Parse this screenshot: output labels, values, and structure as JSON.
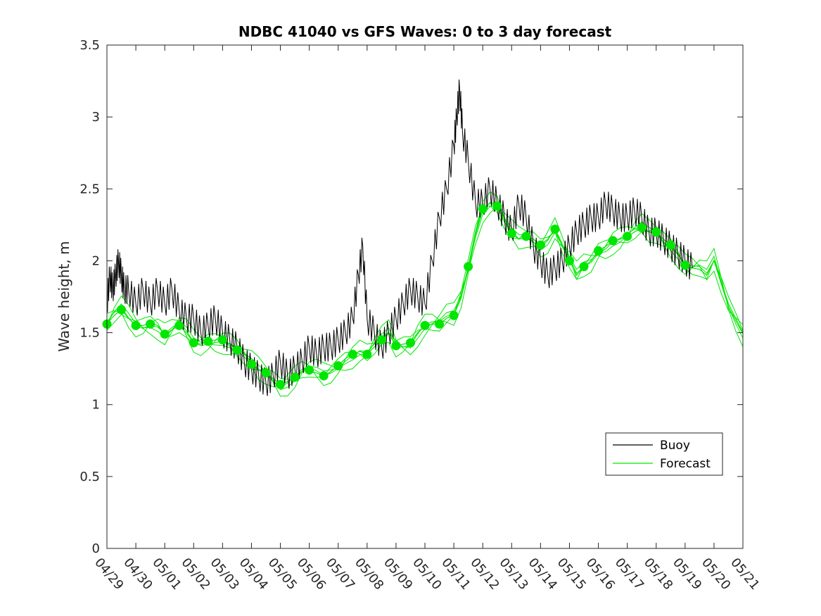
{
  "chart_data": {
    "type": "line",
    "title": "NDBC 41040 vs GFS Waves: 0 to 3 day forecast",
    "xlabel": "",
    "ylabel": "Wave height, m",
    "xlim": [
      0,
      22
    ],
    "ylim": [
      0,
      3.5
    ],
    "x_unit": "days from 04/29",
    "x_tick_labels": [
      "04/29",
      "04/30",
      "05/01",
      "05/02",
      "05/03",
      "05/04",
      "05/05",
      "05/06",
      "05/07",
      "05/08",
      "05/09",
      "05/10",
      "05/11",
      "05/12",
      "05/13",
      "05/14",
      "05/15",
      "05/16",
      "05/17",
      "05/18",
      "05/19",
      "05/20",
      "05/21"
    ],
    "y_ticks": [
      0,
      0.5,
      1,
      1.5,
      2,
      2.5,
      3,
      3.5
    ],
    "y_tick_labels": [
      "0",
      "0.5",
      "1",
      "1.5",
      "2",
      "2.5",
      "3",
      "3.5"
    ],
    "grid": false,
    "legend_position": "bottom-right",
    "colors": {
      "buoy": "#000000",
      "forecast": "#00e600"
    },
    "series": [
      {
        "name": "Buoy",
        "color": "#000000",
        "x": [
          0,
          0.1,
          0.2,
          0.3,
          0.4,
          0.5,
          0.6,
          0.75,
          1.0,
          1.25,
          1.5,
          1.75,
          2.0,
          2.25,
          2.5,
          2.75,
          3.0,
          3.25,
          3.5,
          3.75,
          4.0,
          4.25,
          4.5,
          4.75,
          5.0,
          5.25,
          5.5,
          5.75,
          6.0,
          6.25,
          6.5,
          6.75,
          7.0,
          7.25,
          7.5,
          7.75,
          8.0,
          8.25,
          8.5,
          8.7,
          8.85,
          9.0,
          9.25,
          9.5,
          9.75,
          10.0,
          10.25,
          10.5,
          10.75,
          11.0,
          11.25,
          11.5,
          11.75,
          12.0,
          12.1,
          12.2,
          12.3,
          12.5,
          12.75,
          13.0,
          13.25,
          13.5,
          13.75,
          14.0,
          14.25,
          14.5,
          14.75,
          15.0,
          15.25,
          15.5,
          15.75,
          16.0,
          16.25,
          16.5,
          16.75,
          17.0,
          17.25,
          17.5,
          17.75,
          18.0,
          18.25,
          18.5,
          18.75,
          19.0,
          19.25,
          19.5,
          19.75,
          20.0,
          20.25
        ],
        "values": [
          1.7,
          1.9,
          1.8,
          1.9,
          2.0,
          1.9,
          1.8,
          1.8,
          1.7,
          1.8,
          1.7,
          1.8,
          1.7,
          1.8,
          1.65,
          1.6,
          1.6,
          1.5,
          1.55,
          1.6,
          1.5,
          1.45,
          1.4,
          1.3,
          1.25,
          1.2,
          1.15,
          1.2,
          1.3,
          1.2,
          1.25,
          1.3,
          1.4,
          1.35,
          1.4,
          1.4,
          1.45,
          1.5,
          1.6,
          1.9,
          2.1,
          1.6,
          1.5,
          1.4,
          1.5,
          1.6,
          1.7,
          1.8,
          1.75,
          1.7,
          2.0,
          2.3,
          2.5,
          2.8,
          3.0,
          3.2,
          2.9,
          2.7,
          2.4,
          2.4,
          2.5,
          2.4,
          2.3,
          2.2,
          2.4,
          2.3,
          2.1,
          2.0,
          1.9,
          1.95,
          2.0,
          2.1,
          2.2,
          2.25,
          2.3,
          2.3,
          2.4,
          2.35,
          2.3,
          2.3,
          2.35,
          2.3,
          2.2,
          2.2,
          2.15,
          2.1,
          2.05,
          2.0,
          1.95
        ]
      },
      {
        "name": "Forecast",
        "color": "#00e600",
        "x": [
          0,
          0.25,
          0.5,
          0.75,
          1.0,
          1.25,
          1.5,
          1.75,
          2.0,
          2.25,
          2.5,
          2.75,
          3.0,
          3.25,
          3.5,
          3.75,
          4.0,
          4.25,
          4.5,
          4.75,
          5.0,
          5.25,
          5.5,
          5.75,
          6.0,
          6.25,
          6.5,
          6.75,
          7.0,
          7.25,
          7.5,
          7.75,
          8.0,
          8.25,
          8.5,
          8.75,
          9.0,
          9.25,
          9.5,
          9.75,
          10.0,
          10.25,
          10.5,
          10.75,
          11.0,
          11.25,
          11.5,
          11.75,
          12.0,
          12.25,
          12.5,
          12.75,
          13.0,
          13.25,
          13.5,
          13.75,
          14.0,
          14.25,
          14.5,
          14.75,
          15.0,
          15.25,
          15.5,
          15.75,
          16.0,
          16.25,
          16.5,
          16.75,
          17.0,
          17.25,
          17.5,
          17.75,
          18.0,
          18.25,
          18.5,
          18.75,
          19.0,
          19.25,
          19.5,
          19.75,
          20.0,
          20.25,
          20.5,
          20.75,
          21.0,
          21.25,
          21.5,
          21.75,
          22.0
        ],
        "values": [
          1.56,
          1.62,
          1.66,
          1.6,
          1.55,
          1.55,
          1.57,
          1.55,
          1.49,
          1.52,
          1.55,
          1.5,
          1.43,
          1.42,
          1.44,
          1.45,
          1.45,
          1.42,
          1.38,
          1.33,
          1.28,
          1.24,
          1.22,
          1.18,
          1.14,
          1.16,
          1.19,
          1.23,
          1.24,
          1.22,
          1.2,
          1.23,
          1.27,
          1.32,
          1.35,
          1.37,
          1.35,
          1.4,
          1.45,
          1.5,
          1.41,
          1.42,
          1.43,
          1.5,
          1.55,
          1.56,
          1.56,
          1.6,
          1.62,
          1.75,
          1.96,
          2.2,
          2.36,
          2.4,
          2.38,
          2.27,
          2.19,
          2.15,
          2.17,
          2.15,
          2.11,
          2.15,
          2.22,
          2.1,
          2.0,
          1.9,
          1.96,
          2.0,
          2.07,
          2.1,
          2.14,
          2.15,
          2.17,
          2.2,
          2.23,
          2.2,
          2.2,
          2.15,
          2.11,
          2.05,
          1.97,
          1.95,
          1.94,
          1.9,
          2.0,
          1.85,
          1.7,
          1.6,
          1.5
        ]
      }
    ],
    "forecast_ensemble_offsets": [
      0.04,
      -0.05,
      0.08,
      -0.1,
      -0.02
    ],
    "forecast_markers": {
      "x": [
        0,
        0.5,
        1.0,
        1.5,
        2.0,
        2.5,
        3.0,
        3.5,
        4.0,
        4.5,
        5.0,
        5.5,
        6.0,
        6.5,
        7.0,
        7.5,
        8.0,
        8.5,
        9.0,
        9.5,
        10.0,
        10.5,
        11.0,
        11.5,
        12.0,
        12.5,
        13.0,
        13.5,
        14.0,
        14.5,
        15.0,
        15.5,
        16.0,
        16.5,
        17.0,
        17.5,
        18.0,
        18.5,
        19.0,
        19.5,
        20.0
      ],
      "values": [
        1.56,
        1.66,
        1.55,
        1.56,
        1.49,
        1.55,
        1.43,
        1.44,
        1.45,
        1.38,
        1.28,
        1.22,
        1.14,
        1.19,
        1.24,
        1.2,
        1.27,
        1.35,
        1.35,
        1.45,
        1.41,
        1.43,
        1.55,
        1.56,
        1.62,
        1.96,
        2.36,
        2.38,
        2.19,
        2.17,
        2.11,
        2.22,
        2.0,
        1.96,
        2.07,
        2.14,
        2.17,
        2.23,
        2.2,
        2.11,
        1.97
      ]
    },
    "legend": [
      {
        "label": "Buoy",
        "color": "#000000"
      },
      {
        "label": "Forecast",
        "color": "#00e600"
      }
    ]
  }
}
